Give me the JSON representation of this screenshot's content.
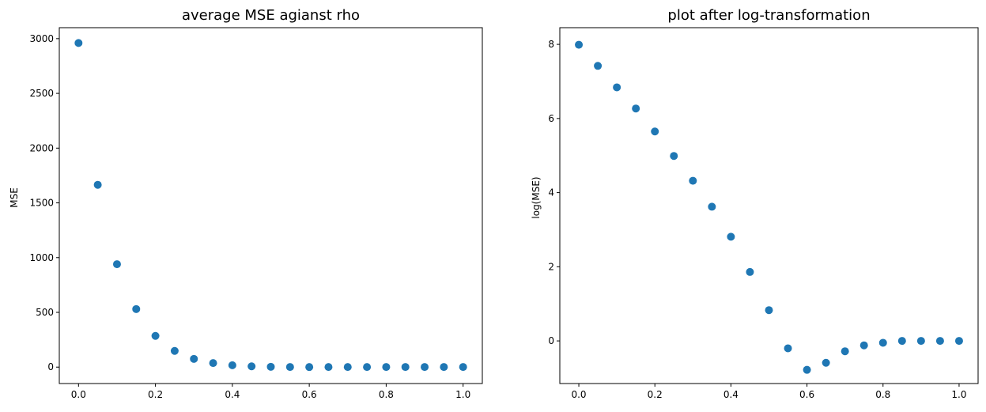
{
  "colors": {
    "marker": "#1f77b4",
    "axes": "#000000",
    "background": "#ffffff"
  },
  "chart_data": [
    {
      "type": "scatter",
      "title": "average MSE agianst rho",
      "xlabel": "",
      "ylabel": "MSE",
      "xlim": [
        -0.05,
        1.05
      ],
      "ylim": [
        -150,
        3100
      ],
      "xticks": [
        0.0,
        0.2,
        0.4,
        0.6,
        0.8,
        1.0
      ],
      "xtick_labels": [
        "0.0",
        "0.2",
        "0.4",
        "0.6",
        "0.8",
        "1.0"
      ],
      "yticks": [
        0,
        500,
        1000,
        1500,
        2000,
        2500,
        3000
      ],
      "ytick_labels": [
        "0",
        "500",
        "1000",
        "1500",
        "2000",
        "2500",
        "3000"
      ],
      "grid": false,
      "series": [
        {
          "name": "MSE",
          "x": [
            0.0,
            0.05,
            0.1,
            0.15,
            0.2,
            0.25,
            0.3,
            0.35,
            0.4,
            0.45,
            0.5,
            0.55,
            0.6,
            0.65,
            0.7,
            0.75,
            0.8,
            0.85,
            0.9,
            0.95,
            1.0
          ],
          "y": [
            2960,
            1665,
            940,
            530,
            285,
            148,
            75,
            37,
            17,
            7,
            3,
            1,
            0.5,
            0.6,
            0.8,
            0.9,
            1,
            1,
            1,
            1,
            1
          ]
        }
      ]
    },
    {
      "type": "scatter",
      "title": "plot after log-transformation",
      "xlabel": "",
      "ylabel": "log(MSE)",
      "xlim": [
        -0.05,
        1.05
      ],
      "ylim": [
        -1.15,
        8.45
      ],
      "xticks": [
        0.0,
        0.2,
        0.4,
        0.6,
        0.8,
        1.0
      ],
      "xtick_labels": [
        "0.0",
        "0.2",
        "0.4",
        "0.6",
        "0.8",
        "1.0"
      ],
      "yticks": [
        0,
        2,
        4,
        6,
        8
      ],
      "ytick_labels": [
        "0",
        "2",
        "4",
        "6",
        "8"
      ],
      "grid": false,
      "series": [
        {
          "name": "log(MSE)",
          "x": [
            0.0,
            0.05,
            0.1,
            0.15,
            0.2,
            0.25,
            0.3,
            0.35,
            0.4,
            0.45,
            0.5,
            0.55,
            0.6,
            0.65,
            0.7,
            0.75,
            0.8,
            0.85,
            0.9,
            0.95,
            1.0
          ],
          "y": [
            7.99,
            7.42,
            6.84,
            6.27,
            5.65,
            4.99,
            4.32,
            3.62,
            2.81,
            1.86,
            0.83,
            -0.2,
            -0.78,
            -0.59,
            -0.28,
            -0.12,
            -0.05,
            0.0,
            0.0,
            0.0,
            0.0
          ]
        }
      ]
    }
  ]
}
